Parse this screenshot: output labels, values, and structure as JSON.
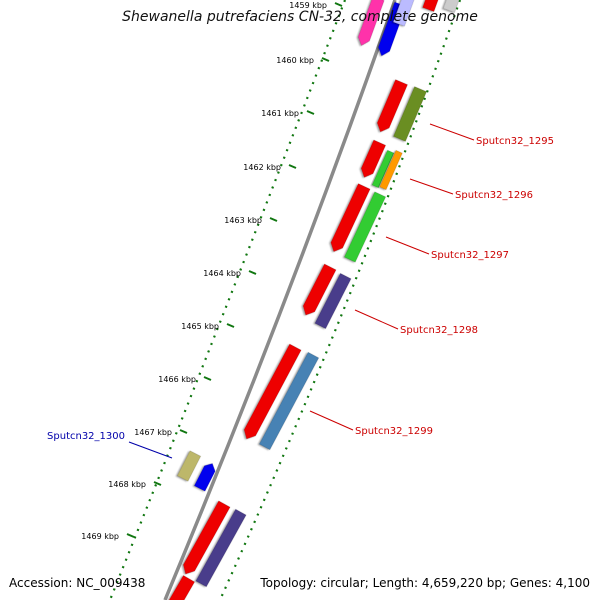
{
  "title": "Shewanella putrefaciens CN-32, complete genome",
  "footer": {
    "accession": "Accession: NC_009438",
    "stats": "Topology: circular; Length: 4,659,220 bp; Genes: 4,100"
  },
  "colors": {
    "backbone": "#8a8a8a",
    "ticks": "#117711",
    "label_forward": "#cc0000",
    "label_reverse": "#0000aa"
  },
  "ticks": [
    "1459 kbp",
    "1460 kbp",
    "1461 kbp",
    "1462 kbp",
    "1463 kbp",
    "1464 kbp",
    "1465 kbp",
    "1466 kbp",
    "1467 kbp",
    "1468 kbp",
    "1469 kbp"
  ],
  "genes": [
    {
      "id": "g-top-magenta",
      "color": "#ff33aa"
    },
    {
      "id": "g-top-red",
      "color": "#ee0000"
    },
    {
      "id": "g-top-blue",
      "color": "#0000ee"
    },
    {
      "id": "g-top-lavender",
      "color": "#bbbbff"
    },
    {
      "id": "g-top-grey",
      "color": "#cccccc"
    },
    {
      "id": "g1",
      "color": "#ee0000"
    },
    {
      "id": "g2",
      "color": "#6b8e23"
    },
    {
      "id": "g3",
      "color": "#ee0000"
    },
    {
      "id": "g4",
      "color": "#33cc33"
    },
    {
      "id": "g5",
      "color": "#ff9900"
    },
    {
      "id": "g6",
      "color": "#ee0000"
    },
    {
      "id": "g7",
      "color": "#33cc33"
    },
    {
      "id": "g8",
      "color": "#ee0000"
    },
    {
      "id": "g9",
      "color": "#483d8b"
    },
    {
      "id": "g10",
      "color": "#ee0000"
    },
    {
      "id": "g11",
      "color": "#4682b4"
    },
    {
      "id": "g12",
      "color": "#bdb76b"
    },
    {
      "id": "g13",
      "color": "#0000ee"
    },
    {
      "id": "g14",
      "color": "#ee0000"
    },
    {
      "id": "g15",
      "color": "#483d8b"
    },
    {
      "id": "g16",
      "color": "#ee0000"
    }
  ],
  "labels": [
    "Sputcn32_1295",
    "Sputcn32_1296",
    "Sputcn32_1297",
    "Sputcn32_1298",
    "Sputcn32_1299",
    "Sputcn32_1300"
  ]
}
